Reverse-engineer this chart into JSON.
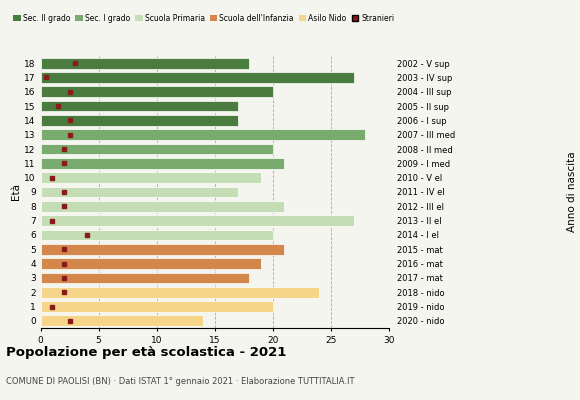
{
  "ages": [
    18,
    17,
    16,
    15,
    14,
    13,
    12,
    11,
    10,
    9,
    8,
    7,
    6,
    5,
    4,
    3,
    2,
    1,
    0
  ],
  "anno_nascita": [
    "2002 - V sup",
    "2003 - IV sup",
    "2004 - III sup",
    "2005 - II sup",
    "2006 - I sup",
    "2007 - III med",
    "2008 - II med",
    "2009 - I med",
    "2010 - V el",
    "2011 - IV el",
    "2012 - III el",
    "2013 - II el",
    "2014 - I el",
    "2015 - mat",
    "2016 - mat",
    "2017 - mat",
    "2018 - nido",
    "2019 - nido",
    "2020 - nido"
  ],
  "bar_values": [
    18,
    27,
    20,
    17,
    17,
    28,
    20,
    21,
    19,
    17,
    21,
    27,
    20,
    21,
    19,
    18,
    24,
    20,
    14
  ],
  "stranieri": [
    3,
    0.5,
    2.5,
    1.5,
    2.5,
    2.5,
    2,
    2,
    1,
    2,
    2,
    1,
    4,
    2,
    2,
    2,
    2,
    1,
    2.5
  ],
  "bar_colors": [
    "#4a7c3f",
    "#4a7c3f",
    "#4a7c3f",
    "#4a7c3f",
    "#4a7c3f",
    "#7aab6e",
    "#7aab6e",
    "#7aab6e",
    "#c5ddb5",
    "#c5ddb5",
    "#c5ddb5",
    "#c5ddb5",
    "#c5ddb5",
    "#d4874a",
    "#d4874a",
    "#d4874a",
    "#f5d58a",
    "#f5d58a",
    "#f5d58a"
  ],
  "legend_labels": [
    "Sec. II grado",
    "Sec. I grado",
    "Scuola Primaria",
    "Scuola dell'Infanzia",
    "Asilo Nido",
    "Stranieri"
  ],
  "legend_colors": [
    "#4a7c3f",
    "#7aab6e",
    "#c5ddb5",
    "#d4874a",
    "#f5d58a",
    "#8b1a1a"
  ],
  "title": "Popolazione per età scolastica - 2021",
  "subtitle": "COMUNE DI PAOLISI (BN) · Dati ISTAT 1° gennaio 2021 · Elaborazione TUTTITALIA.IT",
  "ylabel_left": "Età",
  "ylabel_right": "Anno di nascita",
  "xlim": [
    0,
    30
  ],
  "background_color": "#f5f5f0",
  "stranieri_color": "#8b1a1a",
  "grid_ticks": [
    5,
    10,
    15,
    20,
    25,
    30
  ]
}
